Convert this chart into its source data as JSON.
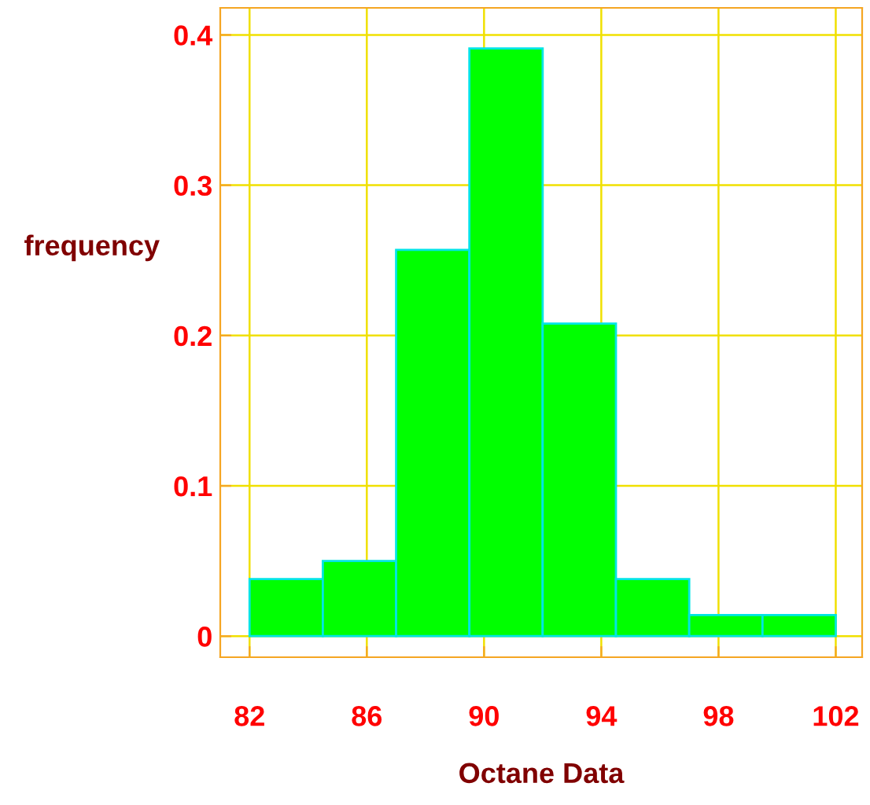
{
  "chart_data": {
    "type": "histogram",
    "xlabel": "Octane Data",
    "ylabel": "frequency",
    "bins": [
      82,
      84.5,
      87,
      89.5,
      92,
      94.5,
      97,
      99.5,
      102
    ],
    "values": [
      0.038,
      0.05,
      0.257,
      0.391,
      0.208,
      0.038,
      0.014,
      0.014
    ],
    "color": "#00ff00",
    "xlim": [
      81.0,
      102.9
    ],
    "ylim": [
      -0.014,
      0.418
    ],
    "xticks": [
      82,
      86,
      90,
      94,
      98,
      102
    ],
    "yticks": [
      {
        "value": 0,
        "label": "0"
      },
      0.1,
      0.2,
      0.3,
      0.4
    ],
    "grid": true
  }
}
